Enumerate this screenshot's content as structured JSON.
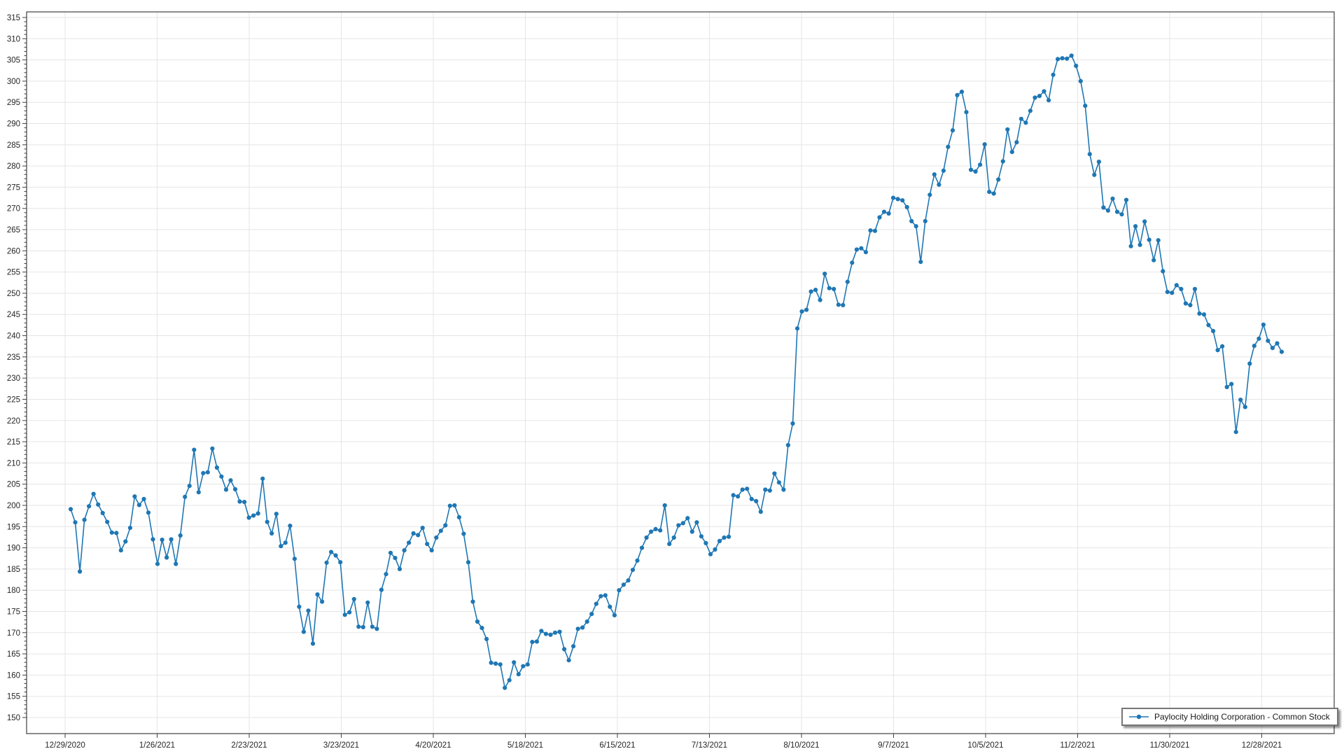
{
  "chart_data": {
    "type": "line",
    "title": "",
    "xlabel": "",
    "ylabel": "",
    "legend_position": "bottom-right",
    "grid": true,
    "line_color": "#1f77b4",
    "grid_color": "#e5e5e5",
    "axis_color": "#404040",
    "label_color": "#262626",
    "ylim": [
      146,
      317
    ],
    "y_tick_step": 5,
    "y_ticks": [
      150,
      155,
      160,
      165,
      170,
      175,
      180,
      185,
      190,
      195,
      200,
      205,
      210,
      215,
      220,
      225,
      230,
      235,
      240,
      245,
      250,
      255,
      260,
      265,
      270,
      275,
      280,
      285,
      290,
      295,
      300,
      305,
      310,
      315
    ],
    "x_tick_labels": [
      "12/29/2020",
      "1/26/2021",
      "2/23/2021",
      "3/23/2021",
      "4/20/2021",
      "5/18/2021",
      "6/15/2021",
      "7/13/2021",
      "8/10/2021",
      "9/7/2021",
      "10/5/2021",
      "11/2/2021",
      "11/30/2021",
      "12/28/2021"
    ],
    "series": [
      {
        "name": "Paylocity Holding Corporation - Common Stock",
        "values": [
          199.1,
          196.0,
          184.4,
          196.6,
          199.8,
          202.7,
          200.2,
          198.2,
          196.1,
          193.6,
          193.5,
          189.4,
          191.5,
          194.7,
          202.1,
          200.1,
          201.5,
          198.3,
          192.0,
          186.2,
          191.9,
          187.7,
          192.0,
          186.2,
          192.9,
          202.0,
          204.6,
          213.1,
          203.1,
          207.6,
          207.8,
          213.4,
          208.9,
          206.8,
          203.7,
          205.9,
          203.8,
          200.9,
          200.8,
          197.1,
          197.6,
          198.1,
          206.3,
          196.1,
          193.4,
          198.0,
          190.4,
          191.2,
          195.2,
          187.4,
          176.1,
          170.2,
          175.2,
          167.4,
          179.0,
          177.3,
          186.5,
          189.0,
          188.2,
          186.6,
          174.2,
          174.8,
          177.9,
          171.4,
          171.3,
          177.1,
          171.4,
          170.9,
          180.1,
          183.8,
          188.8,
          187.6,
          185.0,
          189.4,
          191.2,
          193.4,
          193.0,
          194.7,
          190.9,
          189.4,
          192.4,
          194.0,
          195.3,
          199.9,
          200.0,
          197.2,
          193.3,
          186.6,
          177.3,
          172.6,
          171.1,
          168.5,
          162.9,
          162.7,
          162.5,
          157.0,
          158.8,
          163.0,
          160.2,
          162.1,
          162.5,
          167.8,
          167.9,
          170.4,
          169.7,
          169.5,
          170.0,
          170.2,
          166.1,
          163.5,
          166.8,
          170.9,
          171.2,
          172.6,
          174.4,
          176.8,
          178.6,
          178.8,
          176.1,
          174.1,
          180.0,
          181.3,
          182.3,
          184.8,
          187.0,
          190.0,
          192.4,
          193.8,
          194.4,
          194.1,
          200.0,
          190.9,
          192.4,
          195.3,
          195.8,
          197.0,
          193.8,
          196.0,
          192.7,
          191.1,
          188.5,
          189.6,
          191.6,
          192.4,
          192.6,
          202.4,
          202.1,
          203.7,
          203.9,
          201.5,
          201.0,
          198.5,
          203.7,
          203.5,
          207.5,
          205.4,
          203.7,
          214.2,
          219.3,
          241.7,
          245.7,
          246.1,
          250.4,
          250.8,
          248.4,
          254.6,
          251.2,
          251.0,
          247.3,
          247.2,
          252.7,
          257.2,
          260.3,
          260.6,
          259.7,
          264.8,
          264.7,
          267.9,
          269.2,
          268.8,
          272.5,
          272.2,
          271.9,
          270.3,
          267.0,
          265.8,
          257.4,
          267.0,
          273.2,
          278.0,
          275.6,
          278.9,
          284.5,
          288.4,
          296.7,
          297.5,
          292.7,
          279.1,
          278.7,
          280.3,
          285.1,
          273.9,
          273.5,
          276.8,
          281.1,
          288.6,
          283.3,
          285.6,
          291.1,
          290.2,
          293.0,
          296.1,
          296.5,
          297.6,
          295.5,
          301.5,
          305.2,
          305.4,
          305.3,
          306.0,
          303.6,
          300.0,
          294.2,
          282.8,
          277.9,
          281.0,
          270.2,
          269.5,
          272.3,
          269.2,
          268.6,
          272.0,
          261.1,
          265.8,
          261.4,
          266.9,
          262.6,
          257.8,
          262.5,
          255.2,
          250.3,
          250.1,
          251.9,
          251.0,
          247.6,
          247.2,
          251.0,
          245.2,
          245.0,
          242.5,
          241.1,
          236.6,
          237.5,
          227.9,
          228.6,
          217.3,
          224.9,
          223.2,
          233.4,
          237.6,
          239.3,
          242.6,
          238.8,
          237.1,
          238.2,
          236.2
        ]
      }
    ]
  },
  "legend": {
    "label": "Paylocity Holding Corporation - Common Stock"
  }
}
